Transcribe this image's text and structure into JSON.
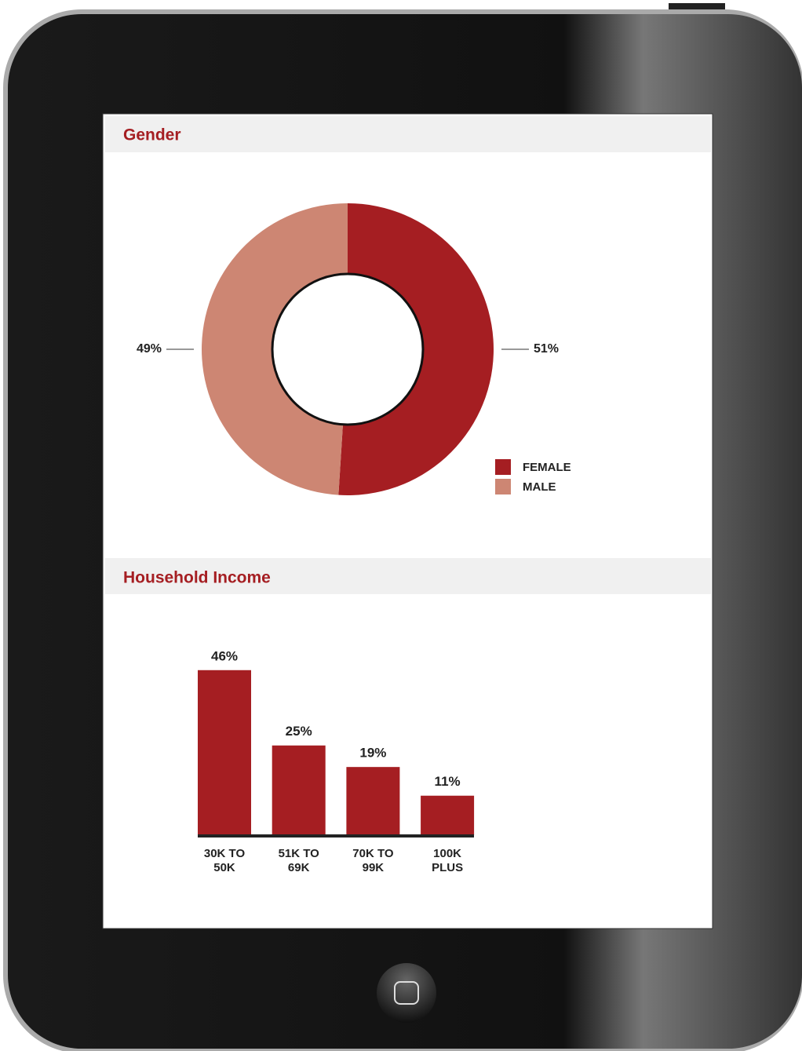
{
  "chart_data": [
    {
      "type": "pie",
      "title": "Gender",
      "categories": [
        "FEMALE",
        "MALE"
      ],
      "values": [
        51,
        49
      ],
      "value_labels": [
        "51%",
        "49%"
      ],
      "colors": [
        "#a51e22",
        "#cd8673"
      ],
      "legend": "lower-right"
    },
    {
      "type": "bar",
      "title": "Household Income",
      "categories": [
        "30K TO 50K",
        "51K TO 69K",
        "70K TO 99K",
        "100K PLUS"
      ],
      "values": [
        46,
        25,
        19,
        11
      ],
      "value_labels": [
        "46%",
        "25%",
        "19%",
        "11%"
      ],
      "color": "#a51e22"
    }
  ]
}
